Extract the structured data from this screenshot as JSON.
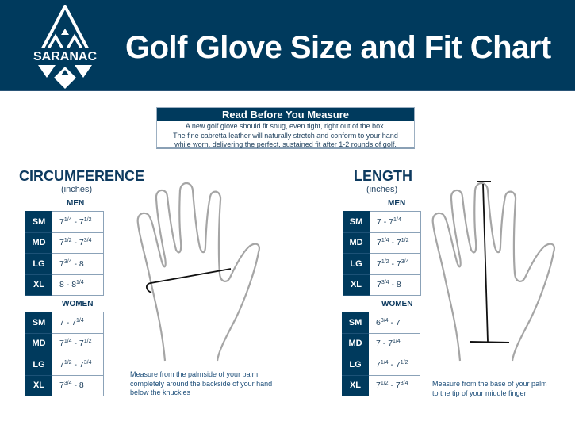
{
  "brand": {
    "name": "SARANAC",
    "color": "#003a5d"
  },
  "header": {
    "title": "Golf Glove Size and Fit Chart"
  },
  "notice": {
    "title": "Read Before You Measure",
    "lines": [
      "A new golf glove should fit snug, even tight, right out of the box.",
      "The fine cabretta leather will naturally stretch and conform to your hand",
      "while worn, delivering the perfect, sustained fit after 1-2 rounds of golf."
    ]
  },
  "circumference": {
    "title": "CIRCUMFERENCE",
    "units": "(inches)",
    "men_label": "MEN",
    "women_label": "WOMEN",
    "men": [
      {
        "size": "SM",
        "range": "7 1/4 - 7 1/2"
      },
      {
        "size": "MD",
        "range": "7 1/2 - 7 3/4"
      },
      {
        "size": "LG",
        "range": "7 3/4 - 8"
      },
      {
        "size": "XL",
        "range": "8 - 8 1/4"
      }
    ],
    "women": [
      {
        "size": "SM",
        "range": "7 - 7 1/4"
      },
      {
        "size": "MD",
        "range": "7 1/4 - 7 1/2"
      },
      {
        "size": "LG",
        "range": "7 1/2 - 7 3/4"
      },
      {
        "size": "XL",
        "range": "7 3/4 - 8"
      }
    ],
    "caption": [
      "Measure from the palmside of your palm",
      "completely around the backside of your hand",
      "below the knuckles"
    ]
  },
  "length": {
    "title": "LENGTH",
    "units": "(inches)",
    "men_label": "MEN",
    "women_label": "WOMEN",
    "men": [
      {
        "size": "SM",
        "range": "7 - 7 1/4"
      },
      {
        "size": "MD",
        "range": "7 1/4 - 7 1/2"
      },
      {
        "size": "LG",
        "range": "7 1/2 - 7 3/4"
      },
      {
        "size": "XL",
        "range": "7 3/4 - 8"
      }
    ],
    "women": [
      {
        "size": "SM",
        "range": "6 3/4 - 7"
      },
      {
        "size": "MD",
        "range": "7 - 7 1/4"
      },
      {
        "size": "LG",
        "range": "7 1/4 - 7 1/2"
      },
      {
        "size": "XL",
        "range": "7 1/2 - 7 3/4"
      }
    ],
    "caption": [
      "Measure from the base of your palm",
      "to the tip of your middle finger"
    ]
  }
}
